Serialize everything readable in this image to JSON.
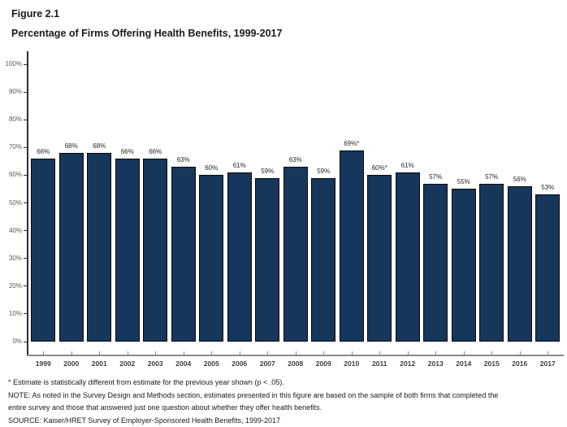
{
  "header": {
    "figure_label": "Figure 2.1",
    "title": "Percentage of Firms Offering Health Benefits, 1999-2017"
  },
  "chart_data": {
    "type": "bar",
    "title": "Percentage of Firms Offering Health Benefits, 1999-2017",
    "xlabel": "",
    "ylabel": "",
    "categories": [
      "1999",
      "2000",
      "2001",
      "2002",
      "2003",
      "2004",
      "2005",
      "2006",
      "2007",
      "2008",
      "2009",
      "2010",
      "2011",
      "2012",
      "2013",
      "2014",
      "2015",
      "2016",
      "2017"
    ],
    "values": [
      66,
      68,
      68,
      66,
      66,
      63,
      60,
      61,
      59,
      63,
      59,
      69,
      60,
      61,
      57,
      55,
      57,
      56,
      53
    ],
    "bar_labels": [
      "66%",
      "68%",
      "68%",
      "66%",
      "66%",
      "63%",
      "60%",
      "61%",
      "59%",
      "63%",
      "59%",
      "69%*",
      "60%*",
      "61%",
      "57%",
      "55%",
      "57%",
      "56%",
      "53%"
    ],
    "ylim": [
      0,
      100
    ],
    "y_ticks": [
      "0%",
      "10%",
      "20%",
      "30%",
      "40%",
      "50%",
      "60%",
      "70%",
      "80%",
      "90%",
      "100%"
    ],
    "grid": false,
    "legend": false,
    "bar_color": "#17365C",
    "bar_border_color": "#0a0a0a",
    "y_axis_color": "#2e2e2e",
    "x_axis_color": "#8a8a8a"
  },
  "footnotes": {
    "line1": "* Estimate is statistically different from estimate for the previous year shown (p < .05).",
    "line2": "NOTE: As noted in the Survey Design and Methods section, estimates presented in this figure are based on the sample of both firms that completed the",
    "line3": "entire survey and those that answered just one question about whether they offer health benefits.",
    "line4": "SOURCE: Kaiser/HRET Survey of Employer-Sponsored Health Benefits, 1999-2017"
  }
}
